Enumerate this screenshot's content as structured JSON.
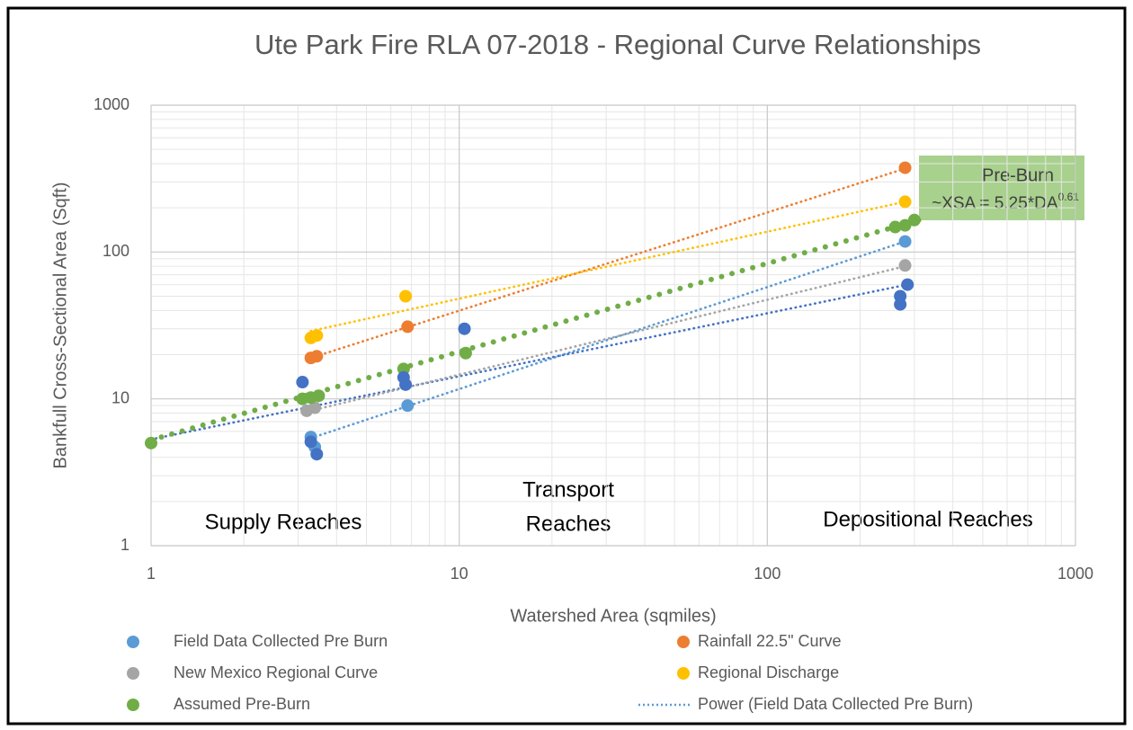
{
  "chart_data": {
    "type": "scatter",
    "title": "Ute Park Fire RLA 07-2018 - Regional Curve Relationships",
    "x_label": "Watershed Area (sqmiles)",
    "y_label": "Bankfull Cross-Sectional Area (Sqft)",
    "log_x": true,
    "log_y": true,
    "grid": true,
    "xlim": [
      1,
      1000
    ],
    "xticks": [
      1,
      10,
      100,
      1000
    ],
    "ylim": [
      1,
      1000
    ],
    "yticks": [
      1,
      10,
      100,
      1000
    ],
    "series": [
      {
        "name": "Field Data Collected Pre Burn",
        "color": "#5b9bd5",
        "x": [
          3.3,
          3.4,
          6.8,
          280
        ],
        "values": [
          5.5,
          4.7,
          9,
          118
        ]
      },
      {
        "name": "Rainfall 22.5\" Curve",
        "color": "#ed7d31",
        "x": [
          3.3,
          3.45,
          6.8,
          280
        ],
        "values": [
          19,
          19.5,
          31,
          375
        ]
      },
      {
        "name": "New Mexico Regional Curve",
        "color": "#a5a5a5",
        "x": [
          3.2,
          3.4,
          280
        ],
        "values": [
          8.3,
          8.7,
          81
        ]
      },
      {
        "name": "Regional Discharge",
        "color": "#ffc000",
        "x": [
          3.3,
          3.45,
          6.7,
          280
        ],
        "values": [
          26,
          27,
          50,
          220
        ]
      },
      {
        "name": "Assumed Pre-Burn",
        "color": "#70ad47",
        "x": [
          1,
          3.1,
          3.3,
          3.5,
          6.6,
          10.5,
          260,
          280,
          300
        ],
        "values": [
          5,
          10,
          10.2,
          10.5,
          16,
          20.5,
          148,
          152,
          165
        ]
      },
      {
        "color": "#4472c4",
        "x": [
          3.1,
          3.3,
          3.45,
          6.6,
          6.7,
          10.4,
          270,
          270,
          285
        ],
        "values": [
          13,
          5.1,
          4.2,
          14,
          12.5,
          30,
          50,
          44,
          60
        ]
      }
    ],
    "trendlines": [
      {
        "name": "Power (Field Data Collected Pre Burn)",
        "color": "#5b9bd5",
        "x": [
          3.3,
          280
        ],
        "values": [
          5.4,
          118
        ]
      },
      {
        "color": "#4472c4",
        "x": [
          1,
          285
        ],
        "values": [
          5.3,
          60
        ]
      },
      {
        "color": "#a5a5a5",
        "x": [
          3.3,
          280
        ],
        "values": [
          8.3,
          80
        ]
      },
      {
        "color": "#ed7d31",
        "x": [
          3.3,
          280
        ],
        "values": [
          19,
          370
        ]
      },
      {
        "color": "#ffc000",
        "x": [
          3.3,
          280
        ],
        "values": [
          29,
          220
        ]
      },
      {
        "color": "#70ad47",
        "x": [
          1,
          310
        ],
        "values": [
          5.25,
          165
        ]
      }
    ],
    "annotations": [
      {
        "text": "Supply Reaches"
      },
      {
        "text": "Transport"
      },
      {
        "text": "Reaches"
      },
      {
        "text": "Depositional Reaches"
      },
      {
        "text": "Pre-Burn"
      },
      {
        "text": "~XSA = 5.25*DA",
        "sup": "0.61"
      }
    ]
  }
}
